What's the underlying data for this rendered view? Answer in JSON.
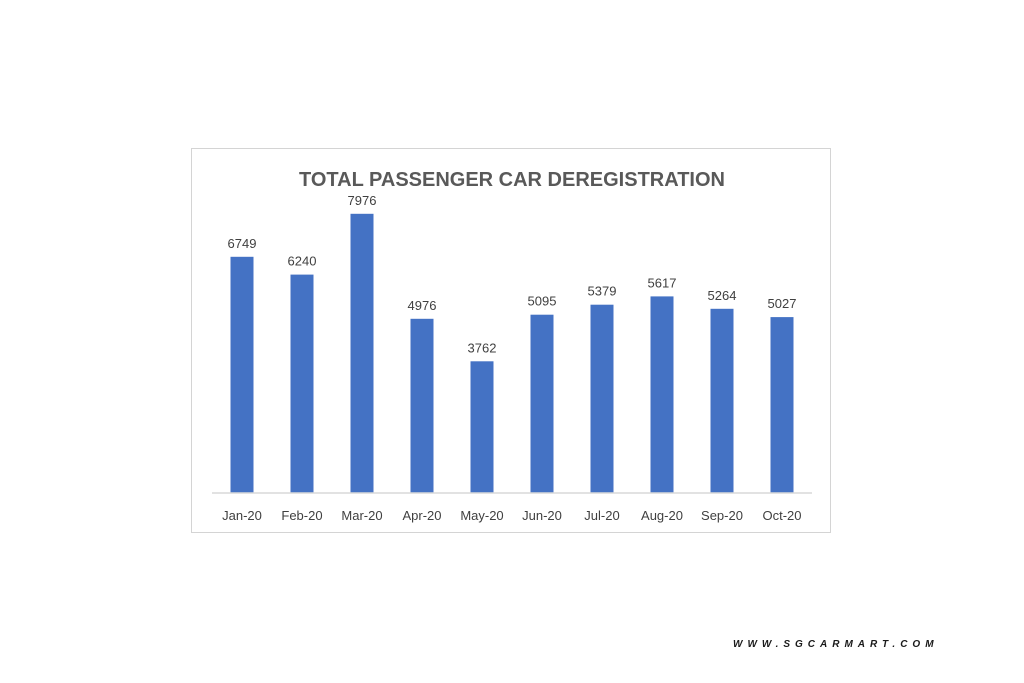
{
  "chart_data": {
    "type": "bar",
    "title": "TOTAL PASSENGER CAR DEREGISTRATION",
    "xlabel": "",
    "ylabel": "",
    "categories": [
      "Jan-20",
      "Feb-20",
      "Mar-20",
      "Apr-20",
      "May-20",
      "Jun-20",
      "Jul-20",
      "Aug-20",
      "Sep-20",
      "Oct-20"
    ],
    "values": [
      6749,
      6240,
      7976,
      4976,
      3762,
      5095,
      5379,
      5617,
      5264,
      5027
    ],
    "ylim": [
      0,
      8000
    ],
    "grid": false,
    "legend": "none",
    "bar_color": "#4472C4",
    "axis_color": "#d9d9d9"
  },
  "watermark": "WWW.SGCARMART.COM"
}
